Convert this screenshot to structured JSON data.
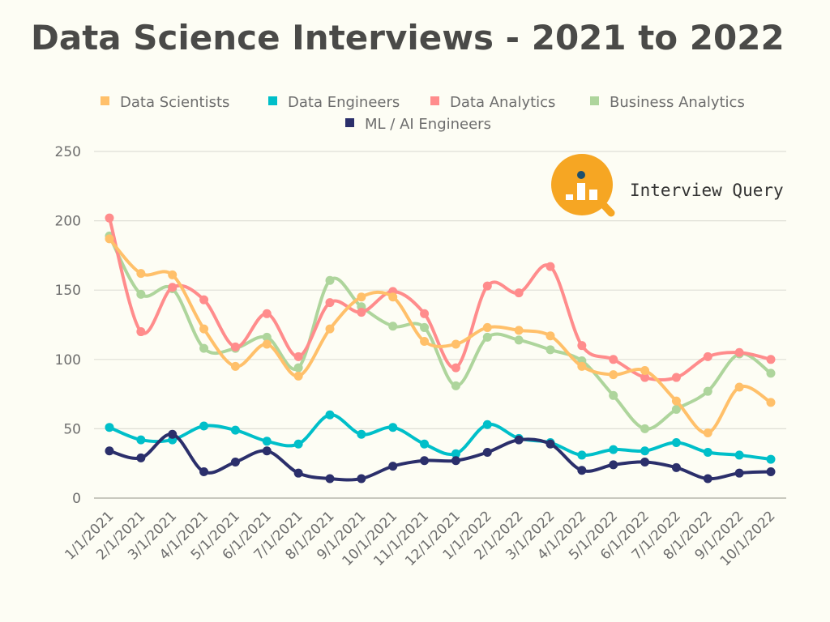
{
  "chart_data": {
    "type": "line",
    "title": "Data Science Interviews - 2021 to 2022",
    "xlabel": "",
    "ylabel": "",
    "ylim": [
      0,
      250
    ],
    "yticks": [
      0,
      50,
      100,
      150,
      200,
      250
    ],
    "grid": true,
    "legend_position": "top",
    "smooth": true,
    "categories": [
      "1/1/2021",
      "2/1/2021",
      "3/1/2021",
      "4/1/2021",
      "5/1/2021",
      "6/1/2021",
      "7/1/2021",
      "8/1/2021",
      "9/1/2021",
      "10/1/2021",
      "11/1/2021",
      "12/1/2021",
      "1/1/2022",
      "2/1/2022",
      "3/1/2022",
      "4/1/2022",
      "5/1/2022",
      "6/1/2022",
      "7/1/2022",
      "8/1/2022",
      "9/1/2022",
      "10/1/2022"
    ],
    "series": [
      {
        "name": "Data Scientists",
        "color": "#ffc06a",
        "values": [
          187,
          162,
          161,
          122,
          95,
          111,
          88,
          122,
          145,
          145,
          113,
          111,
          123,
          121,
          117,
          95,
          89,
          92,
          70,
          47,
          80,
          69
        ]
      },
      {
        "name": "Data Engineers",
        "color": "#00bfc9",
        "values": [
          51,
          42,
          42,
          52,
          49,
          41,
          39,
          60,
          46,
          51,
          39,
          32,
          53,
          43,
          40,
          31,
          35,
          34,
          40,
          33,
          31,
          28
        ]
      },
      {
        "name": "Data Analytics",
        "color": "#ff8c8c",
        "values": [
          202,
          120,
          152,
          143,
          109,
          133,
          102,
          141,
          134,
          149,
          133,
          94,
          153,
          148,
          167,
          110,
          100,
          87,
          87,
          102,
          105,
          100
        ]
      },
      {
        "name": "Business Analytics",
        "color": "#aed59c",
        "values": [
          189,
          147,
          151,
          108,
          108,
          116,
          94,
          157,
          138,
          124,
          123,
          81,
          116,
          114,
          107,
          99,
          74,
          50,
          64,
          77,
          104,
          90
        ]
      },
      {
        "name": "ML / AI Engineers",
        "color": "#2b2f6b",
        "values": [
          34,
          29,
          46,
          19,
          26,
          34,
          18,
          14,
          14,
          23,
          27,
          27,
          33,
          42,
          39,
          20,
          24,
          26,
          22,
          14,
          18,
          19
        ]
      }
    ]
  },
  "logo": {
    "text": "Interview Query",
    "color": "#f6a623"
  }
}
